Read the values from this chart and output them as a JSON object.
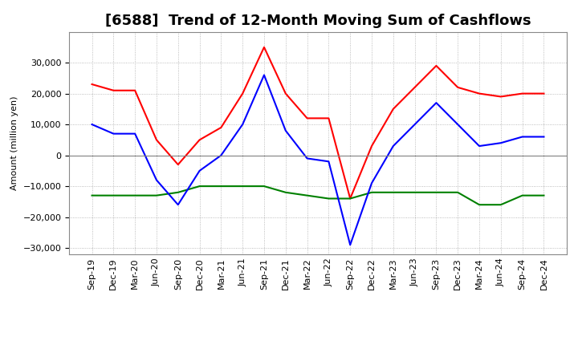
{
  "title": "[6588]  Trend of 12-Month Moving Sum of Cashflows",
  "ylabel": "Amount (million yen)",
  "x_labels": [
    "Sep-19",
    "Dec-19",
    "Mar-20",
    "Jun-20",
    "Sep-20",
    "Dec-20",
    "Mar-21",
    "Jun-21",
    "Sep-21",
    "Dec-21",
    "Mar-22",
    "Jun-22",
    "Sep-22",
    "Dec-22",
    "Mar-23",
    "Jun-23",
    "Sep-23",
    "Dec-23",
    "Mar-24",
    "Jun-24",
    "Sep-24",
    "Dec-24"
  ],
  "operating": [
    23000,
    21000,
    21000,
    5000,
    -3000,
    5000,
    9000,
    20000,
    35000,
    20000,
    12000,
    12000,
    -14000,
    3000,
    15000,
    22000,
    29000,
    22000,
    20000,
    19000,
    20000,
    20000
  ],
  "investing": [
    -13000,
    -13000,
    -13000,
    -13000,
    -12000,
    -10000,
    -10000,
    -10000,
    -10000,
    -12000,
    -13000,
    -14000,
    -14000,
    -12000,
    -12000,
    -12000,
    -12000,
    -12000,
    -16000,
    -16000,
    -13000,
    -13000
  ],
  "free": [
    10000,
    7000,
    7000,
    -8000,
    -16000,
    -5000,
    0,
    10000,
    26000,
    8000,
    -1000,
    -2000,
    -29000,
    -9000,
    3000,
    10000,
    17000,
    10000,
    3000,
    4000,
    6000,
    6000
  ],
  "operating_color": "#FF0000",
  "investing_color": "#008000",
  "free_color": "#0000FF",
  "ylim": [
    -32000,
    40000
  ],
  "yticks": [
    -30000,
    -20000,
    -10000,
    0,
    10000,
    20000,
    30000
  ],
  "background_color": "#FFFFFF",
  "grid_color": "#AAAAAA",
  "title_fontsize": 13,
  "legend_fontsize": 9,
  "axis_fontsize": 8
}
